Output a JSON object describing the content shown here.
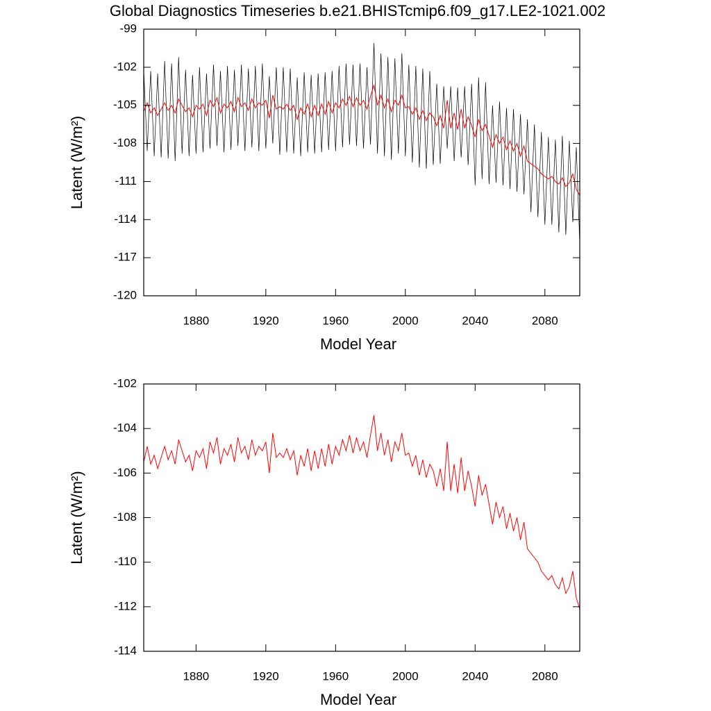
{
  "chart_data": [
    {
      "type": "line",
      "title": "Global Diagnostics Timeseries b.e21.BHISTcmip6.f09_g17.LE2-1021.002",
      "x_label": "Model Year",
      "y_label": "Latent (W/m²)",
      "xlim": [
        1850,
        2100
      ],
      "xticks": [
        1880,
        1920,
        1960,
        2000,
        2040,
        2080
      ],
      "ylim": [
        -120,
        -99
      ],
      "yticks": [
        -120,
        -117,
        -114,
        -111,
        -108,
        -105,
        -102,
        -99
      ],
      "x": [
        1850,
        1852,
        1854,
        1856,
        1858,
        1860,
        1862,
        1864,
        1866,
        1868,
        1870,
        1872,
        1874,
        1876,
        1878,
        1880,
        1882,
        1884,
        1886,
        1888,
        1890,
        1892,
        1894,
        1896,
        1898,
        1900,
        1902,
        1904,
        1906,
        1908,
        1910,
        1912,
        1914,
        1916,
        1918,
        1920,
        1922,
        1924,
        1926,
        1928,
        1930,
        1932,
        1934,
        1936,
        1938,
        1940,
        1942,
        1944,
        1946,
        1948,
        1950,
        1952,
        1954,
        1956,
        1958,
        1960,
        1962,
        1964,
        1966,
        1968,
        1970,
        1972,
        1974,
        1976,
        1978,
        1980,
        1982,
        1984,
        1986,
        1988,
        1990,
        1992,
        1994,
        1996,
        1998,
        2000,
        2002,
        2004,
        2006,
        2008,
        2010,
        2012,
        2014,
        2016,
        2018,
        2020,
        2022,
        2024,
        2026,
        2028,
        2030,
        2032,
        2034,
        2036,
        2038,
        2040,
        2042,
        2044,
        2046,
        2048,
        2050,
        2052,
        2054,
        2056,
        2058,
        2060,
        2062,
        2064,
        2066,
        2068,
        2070,
        2072,
        2074,
        2076,
        2078,
        2080,
        2082,
        2084,
        2086,
        2088,
        2090,
        2092,
        2094,
        2096,
        2098,
        2100
      ],
      "series": [
        {
          "color": "#000000",
          "values": [
            -102.2,
            -108.6,
            -102.3,
            -109.0,
            -102.5,
            -109.1,
            -101.5,
            -109.2,
            -101.7,
            -109.4,
            -101.2,
            -108.8,
            -102.2,
            -109.0,
            -102.6,
            -108.8,
            -102.0,
            -108.7,
            -102.5,
            -108.4,
            -101.8,
            -108.2,
            -102.3,
            -108.7,
            -101.9,
            -108.5,
            -102.2,
            -108.2,
            -101.8,
            -108.6,
            -102.1,
            -108.3,
            -101.9,
            -108.6,
            -101.7,
            -108.4,
            -102.7,
            -108.0,
            -102.0,
            -108.9,
            -102.0,
            -108.7,
            -102.1,
            -108.8,
            -102.8,
            -109.0,
            -102.4,
            -108.7,
            -102.6,
            -108.8,
            -102.5,
            -108.7,
            -102.4,
            -108.5,
            -102.3,
            -108.6,
            -101.9,
            -108.3,
            -101.7,
            -108.1,
            -101.8,
            -108.2,
            -101.7,
            -108.4,
            -102.0,
            -108.1,
            -100.1,
            -108.8,
            -100.9,
            -109.0,
            -101.2,
            -109.3,
            -101.3,
            -108.8,
            -100.9,
            -109.0,
            -101.8,
            -109.5,
            -101.9,
            -109.9,
            -102.1,
            -110.0,
            -102.3,
            -109.7,
            -103.3,
            -109.6,
            -103.5,
            -108.4,
            -103.5,
            -109.4,
            -103.6,
            -109.1,
            -103.5,
            -109.7,
            -103.3,
            -111.3,
            -102.8,
            -110.8,
            -103.2,
            -111.2,
            -105.0,
            -111.1,
            -104.7,
            -111.3,
            -105.2,
            -111.6,
            -105.3,
            -111.8,
            -105.7,
            -112.0,
            -106.1,
            -113.4,
            -106.5,
            -113.8,
            -107.1,
            -114.4,
            -107.5,
            -114.4,
            -107.7,
            -115.0,
            -107.4,
            -115.2,
            -107.8,
            -114.2,
            -108.3,
            -115.9
          ]
        },
        {
          "color": "#ff0000",
          "values": [
            -105.5,
            -104.8,
            -105.6,
            -105.2,
            -105.8,
            -105.3,
            -104.8,
            -105.4,
            -105.0,
            -105.6,
            -104.5,
            -105.0,
            -105.5,
            -105.2,
            -105.9,
            -105.0,
            -105.3,
            -104.9,
            -105.8,
            -104.6,
            -105.1,
            -104.4,
            -105.6,
            -104.9,
            -105.2,
            -104.7,
            -105.5,
            -104.4,
            -105.1,
            -104.8,
            -105.4,
            -104.5,
            -105.2,
            -104.8,
            -105.0,
            -104.6,
            -106.0,
            -104.2,
            -105.3,
            -105.1,
            -105.3,
            -104.9,
            -105.4,
            -105.0,
            -106.1,
            -105.2,
            -105.7,
            -104.9,
            -105.9,
            -105.0,
            -105.8,
            -104.9,
            -105.7,
            -104.7,
            -105.6,
            -104.8,
            -105.2,
            -104.5,
            -105.0,
            -104.3,
            -105.1,
            -104.4,
            -105.0,
            -104.6,
            -105.3,
            -104.3,
            -103.4,
            -105.0,
            -104.2,
            -105.2,
            -104.5,
            -105.5,
            -104.6,
            -105.0,
            -104.2,
            -105.2,
            -105.1,
            -105.7,
            -105.2,
            -106.1,
            -105.4,
            -106.2,
            -105.6,
            -105.9,
            -106.6,
            -105.8,
            -106.8,
            -104.6,
            -106.8,
            -105.6,
            -106.9,
            -105.3,
            -106.8,
            -105.9,
            -106.6,
            -107.5,
            -106.1,
            -107.0,
            -106.5,
            -107.4,
            -108.3,
            -107.3,
            -108.0,
            -107.5,
            -108.5,
            -107.8,
            -108.6,
            -108.0,
            -109.0,
            -108.2,
            -109.4,
            -109.6,
            -109.8,
            -110.0,
            -110.4,
            -110.6,
            -110.8,
            -110.6,
            -111.0,
            -111.2,
            -110.7,
            -111.4,
            -111.1,
            -110.4,
            -111.6,
            -112.1
          ]
        }
      ]
    },
    {
      "type": "line",
      "x_label": "Model Year",
      "y_label": "Latent (W/m²)",
      "xlim": [
        1850,
        2100
      ],
      "xticks": [
        1880,
        1920,
        1960,
        2000,
        2040,
        2080
      ],
      "ylim": [
        -114,
        -102
      ],
      "yticks": [
        -114,
        -112,
        -110,
        -108,
        -106,
        -104,
        -102
      ],
      "x": [
        1850,
        1852,
        1854,
        1856,
        1858,
        1860,
        1862,
        1864,
        1866,
        1868,
        1870,
        1872,
        1874,
        1876,
        1878,
        1880,
        1882,
        1884,
        1886,
        1888,
        1890,
        1892,
        1894,
        1896,
        1898,
        1900,
        1902,
        1904,
        1906,
        1908,
        1910,
        1912,
        1914,
        1916,
        1918,
        1920,
        1922,
        1924,
        1926,
        1928,
        1930,
        1932,
        1934,
        1936,
        1938,
        1940,
        1942,
        1944,
        1946,
        1948,
        1950,
        1952,
        1954,
        1956,
        1958,
        1960,
        1962,
        1964,
        1966,
        1968,
        1970,
        1972,
        1974,
        1976,
        1978,
        1980,
        1982,
        1984,
        1986,
        1988,
        1990,
        1992,
        1994,
        1996,
        1998,
        2000,
        2002,
        2004,
        2006,
        2008,
        2010,
        2012,
        2014,
        2016,
        2018,
        2020,
        2022,
        2024,
        2026,
        2028,
        2030,
        2032,
        2034,
        2036,
        2038,
        2040,
        2042,
        2044,
        2046,
        2048,
        2050,
        2052,
        2054,
        2056,
        2058,
        2060,
        2062,
        2064,
        2066,
        2068,
        2070,
        2072,
        2074,
        2076,
        2078,
        2080,
        2082,
        2084,
        2086,
        2088,
        2090,
        2092,
        2094,
        2096,
        2098,
        2100
      ],
      "series": [
        {
          "color": "#ff0000",
          "values": [
            -105.5,
            -104.8,
            -105.6,
            -105.2,
            -105.8,
            -105.3,
            -104.8,
            -105.4,
            -105.0,
            -105.6,
            -104.5,
            -105.0,
            -105.5,
            -105.2,
            -105.9,
            -105.0,
            -105.3,
            -104.9,
            -105.8,
            -104.6,
            -105.1,
            -104.4,
            -105.6,
            -104.9,
            -105.2,
            -104.7,
            -105.5,
            -104.4,
            -105.1,
            -104.8,
            -105.4,
            -104.5,
            -105.2,
            -104.8,
            -105.0,
            -104.6,
            -106.0,
            -104.2,
            -105.3,
            -105.1,
            -105.3,
            -104.9,
            -105.4,
            -105.0,
            -106.1,
            -105.2,
            -105.7,
            -104.9,
            -105.9,
            -105.0,
            -105.8,
            -104.9,
            -105.7,
            -104.7,
            -105.6,
            -104.8,
            -105.2,
            -104.5,
            -105.0,
            -104.3,
            -105.1,
            -104.4,
            -105.0,
            -104.6,
            -105.3,
            -104.3,
            -103.4,
            -105.0,
            -104.2,
            -105.2,
            -104.5,
            -105.5,
            -104.6,
            -105.0,
            -104.2,
            -105.2,
            -105.1,
            -105.7,
            -105.2,
            -106.1,
            -105.4,
            -106.2,
            -105.6,
            -105.9,
            -106.6,
            -105.8,
            -106.8,
            -104.6,
            -106.8,
            -105.6,
            -106.9,
            -105.3,
            -106.8,
            -105.9,
            -106.6,
            -107.5,
            -106.1,
            -107.0,
            -106.5,
            -107.4,
            -108.3,
            -107.3,
            -108.0,
            -107.5,
            -108.5,
            -107.8,
            -108.6,
            -108.0,
            -109.0,
            -108.2,
            -109.4,
            -109.6,
            -109.8,
            -110.0,
            -110.4,
            -110.6,
            -110.8,
            -110.6,
            -111.0,
            -111.2,
            -110.7,
            -111.4,
            -111.1,
            -110.4,
            -111.6,
            -112.1
          ]
        }
      ]
    }
  ]
}
